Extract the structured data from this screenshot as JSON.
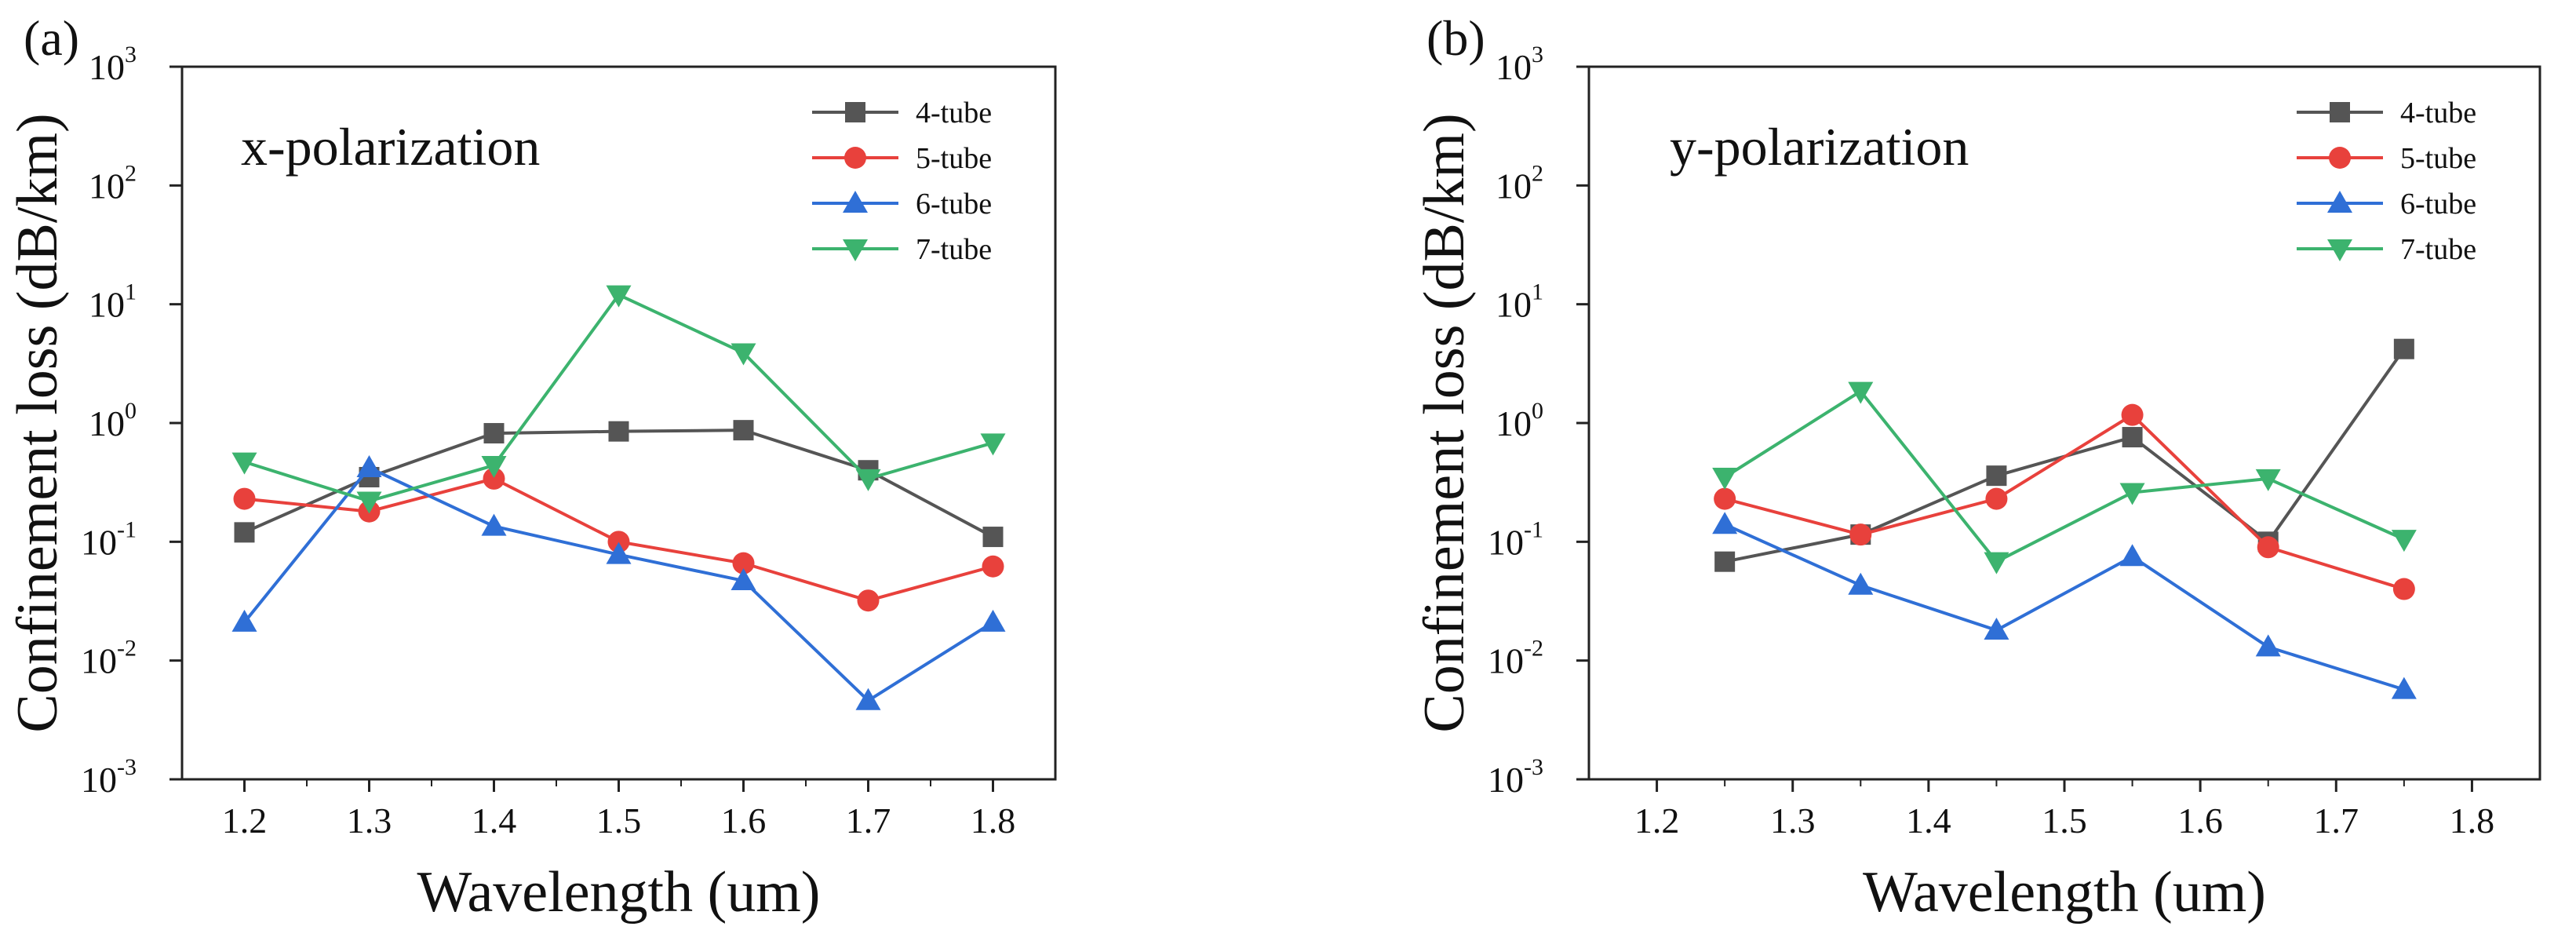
{
  "figure": {
    "panels": [
      "(a)",
      "(b)"
    ]
  },
  "chart_data": [
    {
      "type": "line",
      "panel_label": "(a)",
      "annotation": "x-polarization",
      "xlabel": "Wavelength (um)",
      "ylabel": "Confinement loss (dB/km)",
      "xlim": [
        1.15,
        1.85
      ],
      "ylim": [
        0.001,
        1000
      ],
      "yscale": "log",
      "x_ticks": [
        "1.2",
        "1.3",
        "1.4",
        "1.5",
        "1.6",
        "1.7",
        "1.8"
      ],
      "y_ticks": [
        {
          "base": "10",
          "exp": "3",
          "value": 1000
        },
        {
          "base": "10",
          "exp": "2",
          "value": 100
        },
        {
          "base": "10",
          "exp": "1",
          "value": 10
        },
        {
          "base": "10",
          "exp": "0",
          "value": 1
        },
        {
          "base": "10",
          "exp": "-1",
          "value": 0.1
        },
        {
          "base": "10",
          "exp": "-2",
          "value": 0.01
        },
        {
          "base": "10",
          "exp": "-3",
          "value": 0.001
        }
      ],
      "legend_position": "top-right",
      "x": [
        1.2,
        1.3,
        1.4,
        1.5,
        1.6,
        1.7,
        1.8
      ],
      "series": [
        {
          "name": "4-tube",
          "color": "#555555",
          "marker": "square",
          "values": [
            0.12,
            0.35,
            0.82,
            0.85,
            0.87,
            0.4,
            0.11
          ]
        },
        {
          "name": "5-tube",
          "color": "#e8413c",
          "marker": "circle",
          "values": [
            0.23,
            0.18,
            0.34,
            0.1,
            0.066,
            0.032,
            0.062
          ]
        },
        {
          "name": "6-tube",
          "color": "#2f6fd6",
          "marker": "triangle-up",
          "values": [
            0.021,
            0.42,
            0.135,
            0.078,
            0.047,
            0.0046,
            0.021
          ]
        },
        {
          "name": "7-tube",
          "color": "#3cb36e",
          "marker": "triangle-down",
          "values": [
            0.47,
            0.22,
            0.44,
            12.0,
            3.9,
            0.34,
            0.68
          ]
        }
      ]
    },
    {
      "type": "line",
      "panel_label": "(b)",
      "annotation": "y-polarization",
      "xlabel": "Wavelength (um)",
      "ylabel": "Confinement loss (dB/km)",
      "xlim": [
        1.15,
        1.85
      ],
      "ylim": [
        0.001,
        1000
      ],
      "yscale": "log",
      "x_ticks": [
        "1.2",
        "1.3",
        "1.4",
        "1.5",
        "1.6",
        "1.7",
        "1.8"
      ],
      "y_ticks": [
        {
          "base": "10",
          "exp": "3",
          "value": 1000
        },
        {
          "base": "10",
          "exp": "2",
          "value": 100
        },
        {
          "base": "10",
          "exp": "1",
          "value": 10
        },
        {
          "base": "10",
          "exp": "0",
          "value": 1
        },
        {
          "base": "10",
          "exp": "-1",
          "value": 0.1
        },
        {
          "base": "10",
          "exp": "-2",
          "value": 0.01
        },
        {
          "base": "10",
          "exp": "-3",
          "value": 0.001
        }
      ],
      "legend_position": "top-right",
      "x": [
        1.25,
        1.35,
        1.45,
        1.55,
        1.65,
        1.75
      ],
      "series": [
        {
          "name": "4-tube",
          "color": "#555555",
          "marker": "square",
          "values": [
            0.068,
            0.115,
            0.36,
            0.76,
            0.1,
            4.2
          ]
        },
        {
          "name": "5-tube",
          "color": "#e8413c",
          "marker": "circle",
          "values": [
            0.23,
            0.115,
            0.23,
            1.17,
            0.09,
            0.04
          ]
        },
        {
          "name": "6-tube",
          "color": "#2f6fd6",
          "marker": "triangle-up",
          "values": [
            0.14,
            0.043,
            0.018,
            0.075,
            0.013,
            0.0057
          ]
        },
        {
          "name": "7-tube",
          "color": "#3cb36e",
          "marker": "triangle-down",
          "values": [
            0.35,
            1.85,
            0.068,
            0.26,
            0.34,
            0.105
          ]
        }
      ]
    }
  ]
}
